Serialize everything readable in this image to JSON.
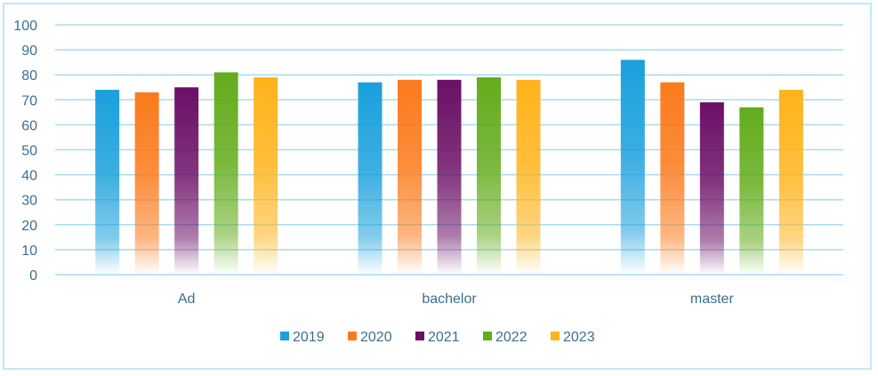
{
  "chart_data": {
    "type": "bar",
    "title": "",
    "xlabel": "",
    "ylabel": "",
    "categories": [
      "Ad",
      "bachelor",
      "master"
    ],
    "ylim": [
      0,
      100
    ],
    "yticks": [
      "0",
      "10",
      "20",
      "30",
      "40",
      "50",
      "60",
      "70",
      "80",
      "90",
      "100"
    ],
    "grid": true,
    "legend_position": "bottom",
    "series": [
      {
        "name": "2019",
        "color": "#1aa0dc",
        "values": [
          74,
          77,
          86
        ]
      },
      {
        "name": "2020",
        "color": "#fb7a1b",
        "values": [
          73,
          78,
          77
        ]
      },
      {
        "name": "2021",
        "color": "#6b0f66",
        "values": [
          75,
          78,
          69
        ]
      },
      {
        "name": "2022",
        "color": "#63ac1c",
        "values": [
          81,
          79,
          67
        ]
      },
      {
        "name": "2023",
        "color": "#ffb31a",
        "values": [
          79,
          78,
          74
        ]
      }
    ]
  },
  "colors": {
    "grid": "#a7dcf0",
    "border": "#bfe9f7",
    "text": "#3a6f90"
  }
}
